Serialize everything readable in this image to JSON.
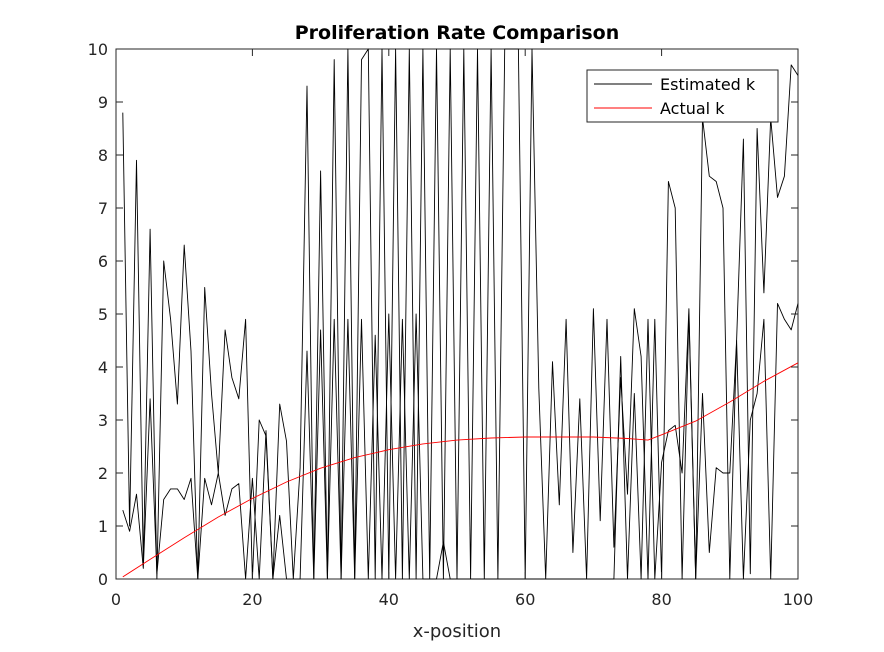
{
  "chart_data": {
    "type": "line",
    "title": "Proliferation Rate Comparison",
    "xlabel": "x-position",
    "ylabel": "",
    "xlim": [
      0,
      100
    ],
    "ylim": [
      0,
      10
    ],
    "xticks": [
      0,
      20,
      40,
      60,
      80,
      100
    ],
    "yticks": [
      0,
      1,
      2,
      3,
      4,
      5,
      6,
      7,
      8,
      9,
      10
    ],
    "grid": false,
    "legend_position": "top-right",
    "series": [
      {
        "name": "Estimated k",
        "color": "#000000",
        "x": [
          1,
          2,
          3,
          4,
          5,
          6,
          7,
          8,
          9,
          10,
          11,
          12,
          13,
          14,
          15,
          16,
          17,
          18,
          19,
          20,
          21,
          22,
          23,
          24,
          25,
          26,
          27,
          28,
          29,
          30,
          31,
          32,
          33,
          34,
          35,
          36,
          37,
          38,
          39,
          40,
          41,
          42,
          43,
          44,
          45,
          46,
          47,
          48,
          49,
          50,
          51,
          52,
          53,
          54,
          55,
          56,
          57,
          58,
          59,
          60,
          61,
          62,
          63,
          64,
          65,
          66,
          67,
          68,
          69,
          70,
          71,
          72,
          73,
          74,
          75,
          76,
          77,
          78,
          79,
          80,
          81,
          82,
          83,
          84,
          85,
          86,
          87,
          88,
          89,
          90,
          91,
          92,
          93,
          94,
          95,
          96,
          97,
          98,
          99,
          100
        ],
        "y": [
          8.8,
          1.0,
          7.9,
          0.3,
          6.6,
          0.0,
          6.0,
          4.9,
          3.3,
          6.3,
          4.3,
          0.0,
          5.5,
          3.5,
          2.0,
          4.7,
          3.8,
          3.4,
          4.9,
          0.0,
          3.0,
          2.7,
          0.0,
          3.3,
          2.6,
          0.0,
          2.1,
          9.3,
          0.0,
          7.7,
          0.0,
          9.8,
          0.0,
          10.0,
          0.0,
          9.8,
          10.0,
          0.0,
          10.0,
          0.0,
          10.0,
          0.0,
          10.0,
          0.0,
          10.0,
          0.0,
          10.0,
          0.0,
          10.0,
          0.0,
          10.0,
          0.0,
          10.0,
          0.0,
          10.0,
          0.0,
          10.0,
          10.0,
          10.0,
          0.0,
          10.0,
          3.6,
          0.0,
          4.1,
          1.4,
          4.9,
          0.5,
          3.4,
          0.0,
          5.1,
          1.1,
          4.9,
          0.6,
          3.8,
          1.6,
          5.1,
          4.2,
          0.0,
          4.9,
          0.0,
          7.5,
          7.0,
          0.0,
          5.0,
          0.0,
          8.7,
          7.6,
          7.5,
          7.0,
          0.0,
          4.5,
          8.3,
          0.1,
          8.5,
          5.4,
          8.7,
          7.2,
          7.6,
          9.7,
          9.5
        ],
        "y_secondary_trace": [
          1.3,
          0.9,
          1.6,
          0.2,
          3.4,
          0.1,
          1.5,
          1.7,
          1.7,
          1.5,
          1.9,
          0.0,
          1.9,
          1.4,
          2.0,
          1.2,
          1.7,
          1.8,
          0.0,
          1.9,
          0.0,
          2.8,
          0.0,
          1.2,
          0.0,
          0.0,
          0.0,
          4.3,
          0.0,
          4.7,
          0.0,
          4.9,
          0.0,
          4.9,
          0.0,
          4.9,
          0.0,
          4.6,
          0.0,
          5.0,
          0.0,
          4.9,
          0.0,
          5.0,
          0.0,
          0.0,
          0.0,
          0.7,
          0.0,
          0.0,
          0.0,
          0.0,
          0.0,
          0.0,
          0.0,
          0.0,
          0.0,
          0.0,
          0.0,
          0.0,
          0.0,
          0.0,
          0.0,
          0.0,
          0.0,
          0.0,
          0.0,
          0.0,
          0.0,
          0.0,
          0.0,
          0.0,
          0.0,
          4.2,
          0.0,
          3.5,
          0.0,
          4.9,
          0.0,
          2.2,
          2.8,
          2.9,
          2.0,
          5.1,
          0.0,
          3.5,
          0.5,
          2.1,
          2.0,
          2.0,
          4.5,
          0.0,
          3.0,
          3.5,
          4.9,
          0.0,
          5.2,
          4.9,
          4.7,
          5.2
        ]
      },
      {
        "name": "Actual k",
        "color": "#ff0000",
        "x": [
          1,
          5,
          10,
          15,
          20,
          25,
          30,
          35,
          40,
          45,
          50,
          55,
          60,
          65,
          70,
          75,
          78,
          80,
          85,
          90,
          95,
          100
        ],
        "y": [
          0.04,
          0.37,
          0.78,
          1.17,
          1.52,
          1.83,
          2.09,
          2.29,
          2.44,
          2.55,
          2.62,
          2.66,
          2.68,
          2.68,
          2.68,
          2.65,
          2.62,
          2.72,
          2.98,
          3.34,
          3.73,
          4.08
        ]
      }
    ]
  }
}
